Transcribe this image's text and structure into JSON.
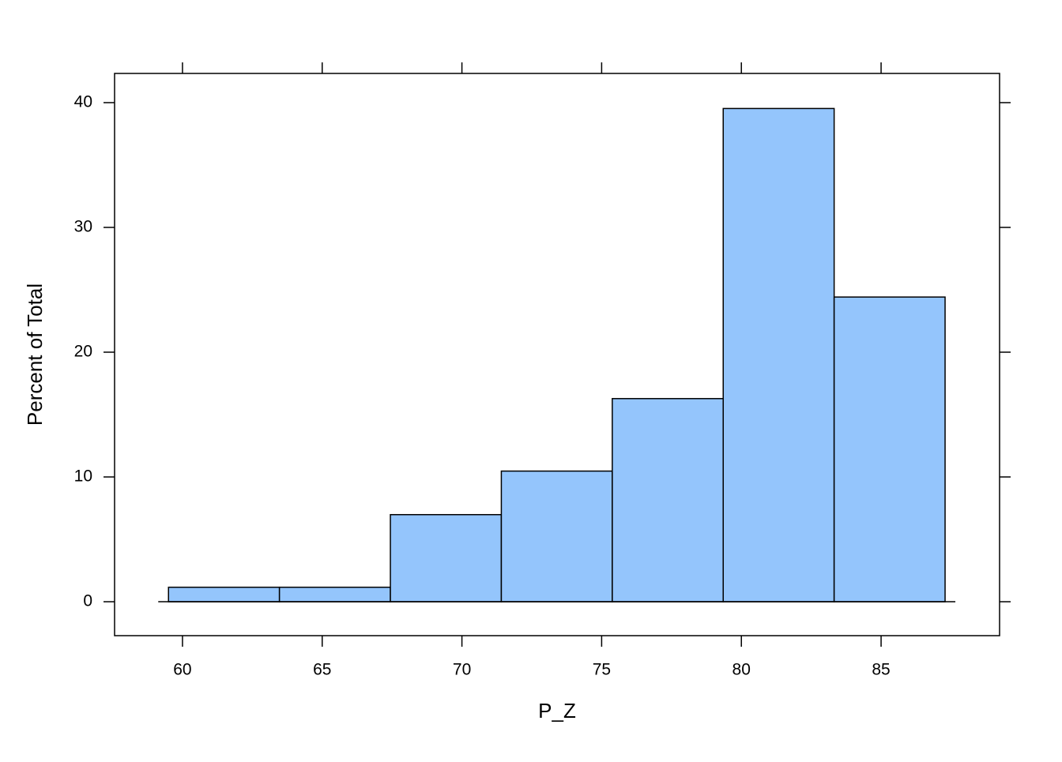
{
  "chart_data": {
    "type": "histogram",
    "xlabel": "P_Z",
    "ylabel": "Percent of Total",
    "bins": [
      59.5,
      63.47,
      67.44,
      71.41,
      75.38,
      79.35,
      83.32,
      87.29
    ],
    "values": [
      1.16,
      1.16,
      6.98,
      10.47,
      16.28,
      39.53,
      24.42
    ],
    "color": "#94c5fc",
    "xlim": [
      57.57,
      89.24
    ],
    "ylim": [
      -2.72,
      42.34
    ],
    "xticks": [
      60,
      65,
      70,
      75,
      80,
      85
    ],
    "yticks": [
      0,
      10,
      20,
      30,
      40
    ]
  }
}
